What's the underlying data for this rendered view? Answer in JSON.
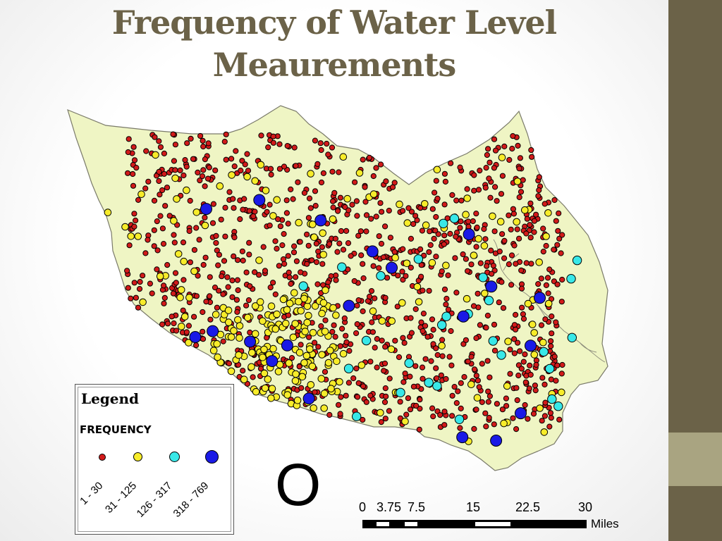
{
  "slide": {
    "title": "Frequency of Water Level Meaurements",
    "accent_colors": {
      "title": "#6b6248",
      "side_bar": "#6b6248",
      "side_accent": "#a9a481"
    }
  },
  "map": {
    "land_color": "#eff5c4",
    "letter_label": "O",
    "wells": {
      "red_count": 1100,
      "yellow_count": 260,
      "cyan_count": 28,
      "blue_count": 20
    }
  },
  "legend": {
    "title": "Legend",
    "subtitle": "FREQUENCY",
    "classes": [
      {
        "label": "1 - 30",
        "color": "#d21a1a"
      },
      {
        "label": "31 - 125",
        "color": "#f7ec2a"
      },
      {
        "label": "126 - 317",
        "color": "#38e8e8"
      },
      {
        "label": "318 - 769",
        "color": "#1a1ae6"
      }
    ]
  },
  "scale_bar": {
    "ticks": [
      "0",
      "3.75",
      "7.5",
      "15",
      "22.5",
      "30"
    ],
    "unit": "Miles"
  }
}
